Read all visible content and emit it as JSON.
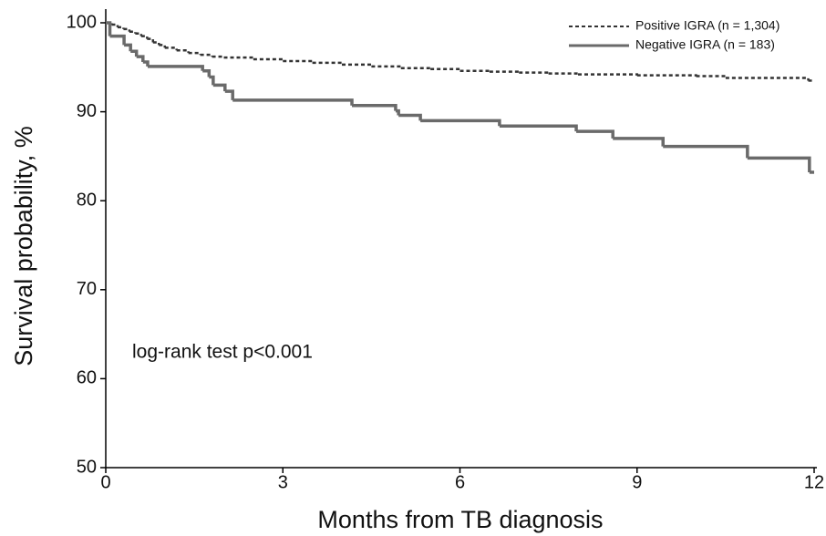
{
  "chart_data": {
    "type": "line",
    "step": true,
    "xlabel": "Months from TB diagnosis",
    "ylabel": "Survival probability, %",
    "annotation": "log-rank test p<0.001",
    "xlim": [
      0,
      12
    ],
    "xticks": [
      0,
      3,
      6,
      9,
      12
    ],
    "ylim": [
      50,
      100
    ],
    "yticks": [
      50,
      60,
      70,
      80,
      90,
      100
    ],
    "legend": "upper right",
    "series": [
      {
        "name": "Positive IGRA (n = 1,304)",
        "color": "#333333",
        "line_style": "dashed",
        "x": [
          0,
          0.1,
          0.2,
          0.3,
          0.4,
          0.5,
          0.6,
          0.7,
          0.8,
          0.9,
          1.0,
          1.2,
          1.4,
          1.6,
          1.8,
          2.0,
          2.5,
          3.0,
          3.5,
          4.0,
          4.5,
          5.0,
          5.5,
          6.0,
          6.5,
          7.0,
          7.5,
          8.0,
          9.0,
          10.0,
          10.5,
          11.9,
          12
        ],
        "values": [
          100,
          99.8,
          99.5,
          99.3,
          99.0,
          98.8,
          98.5,
          98.2,
          97.8,
          97.5,
          97.2,
          96.9,
          96.6,
          96.4,
          96.2,
          96.1,
          95.9,
          95.7,
          95.5,
          95.3,
          95.1,
          94.9,
          94.8,
          94.6,
          94.5,
          94.4,
          94.3,
          94.2,
          94.1,
          94.0,
          93.8,
          93.5,
          93.5
        ]
      },
      {
        "name": "Negative IGRA (n = 183)",
        "color": "#6a6a6a",
        "line_style": "solid",
        "x": [
          0,
          0.07,
          0.31,
          0.42,
          0.52,
          0.63,
          0.71,
          1.64,
          1.75,
          1.82,
          2.02,
          2.15,
          4.17,
          4.91,
          4.96,
          5.33,
          6.67,
          7.97,
          8.59,
          9.44,
          10.87,
          11.92,
          12
        ],
        "values": [
          100,
          98.5,
          97.5,
          96.8,
          96.2,
          95.6,
          95.1,
          94.6,
          93.9,
          93.0,
          92.3,
          91.3,
          90.7,
          90.1,
          89.6,
          89.0,
          88.4,
          87.8,
          87.0,
          86.1,
          84.8,
          83.2,
          83.2
        ]
      }
    ]
  }
}
